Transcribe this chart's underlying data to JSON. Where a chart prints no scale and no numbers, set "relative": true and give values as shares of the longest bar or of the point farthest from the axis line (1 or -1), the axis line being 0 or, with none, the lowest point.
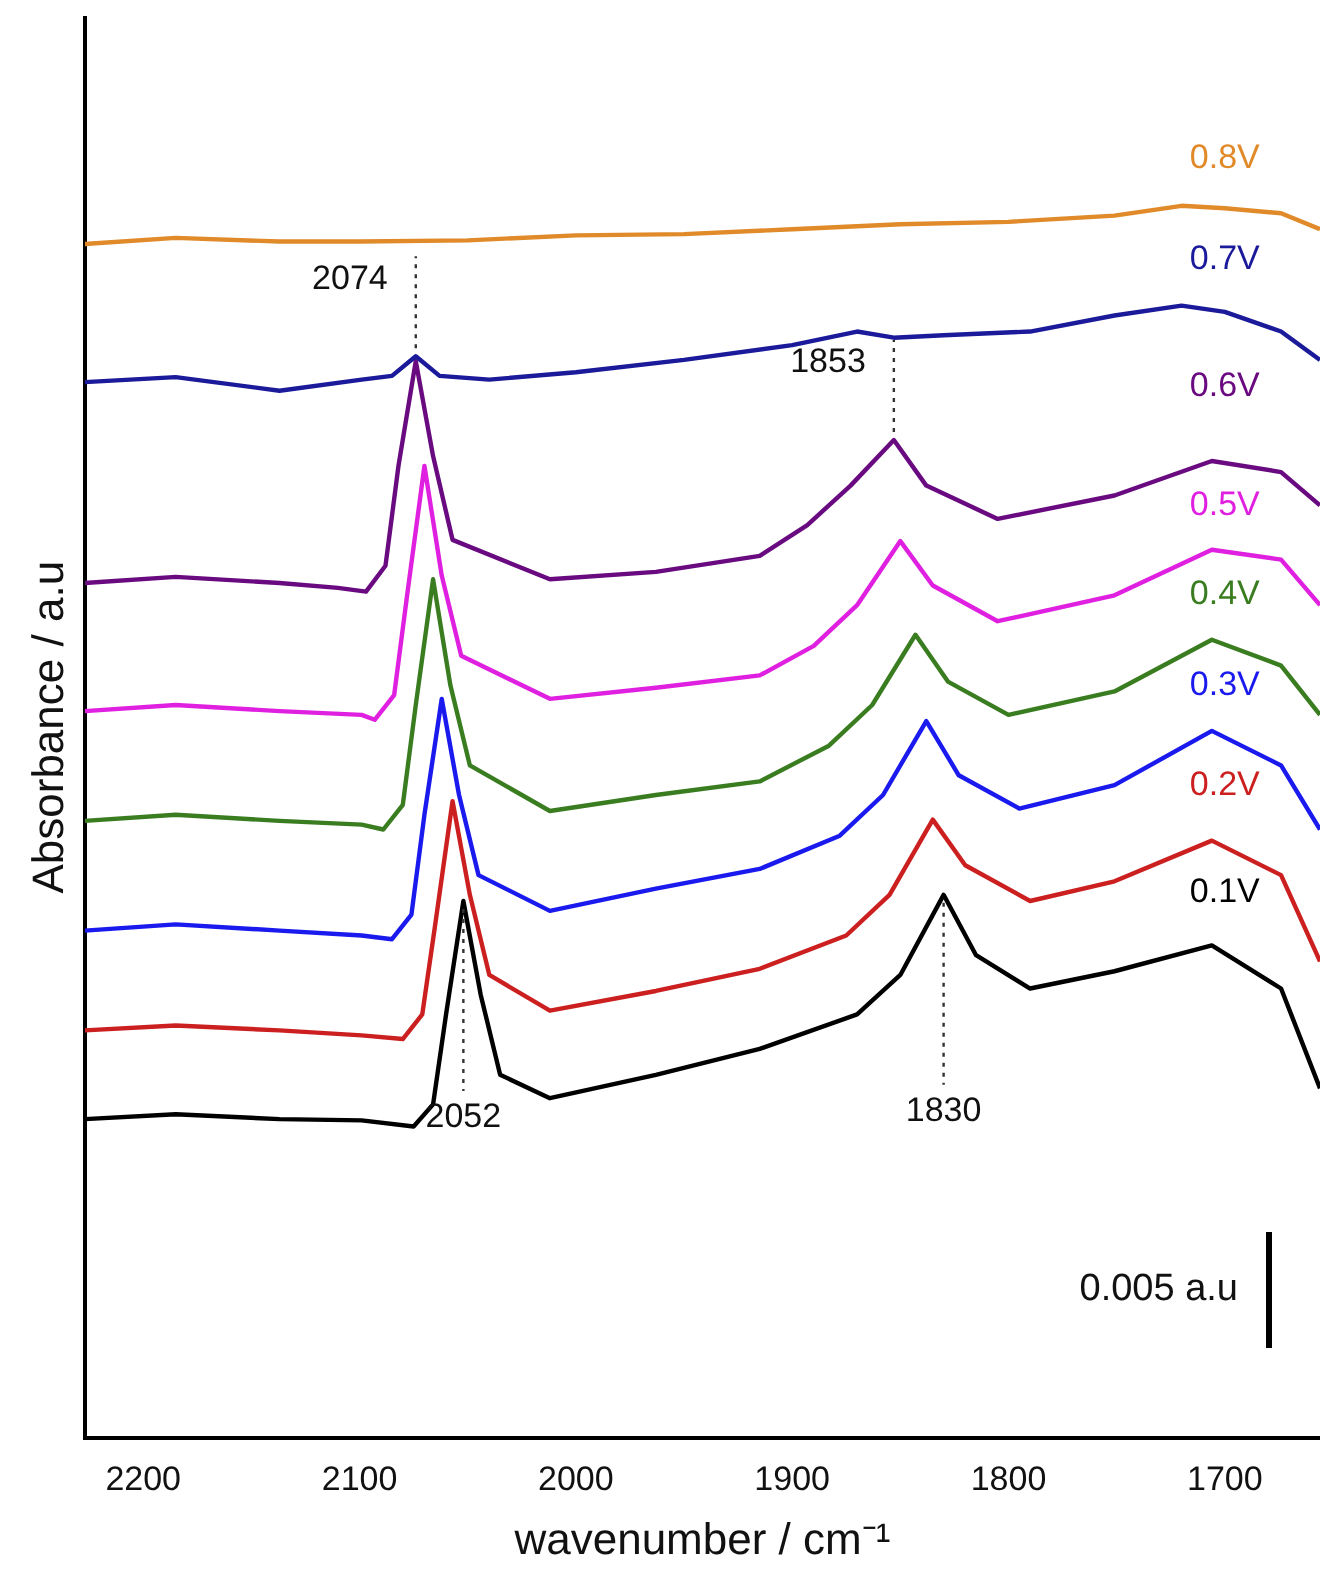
{
  "chart_data": {
    "type": "line",
    "relative": true,
    "xlabel": "wavenumber / cm⁻¹",
    "ylabel": "Absorbance / a.u",
    "xlim": [
      2227,
      1656
    ],
    "xticks": [
      2200,
      2100,
      2000,
      1900,
      1800,
      1700
    ],
    "grid": false,
    "legend": false,
    "marker": "none",
    "line_style": "solid",
    "series": [
      {
        "name": "0.8V",
        "color": "#e08a2a",
        "x": [
          2227,
          2185,
          2137,
          2100,
          2050,
          2000,
          1950,
          1900,
          1850,
          1800,
          1751,
          1720,
          1700,
          1674,
          1656
        ],
        "values": [
          0.969,
          0.974,
          0.971,
          0.971,
          0.972,
          0.976,
          0.977,
          0.981,
          0.985,
          0.987,
          0.992,
          1,
          0.998,
          0.994,
          0.981
        ]
      },
      {
        "name": "0.7V",
        "color": "#1a1a9a",
        "x": [
          2227,
          2185,
          2137,
          2099,
          2085,
          2074,
          2063,
          2040,
          2000,
          1950,
          1900,
          1870,
          1853,
          1830,
          1790,
          1751,
          1720,
          1700,
          1674,
          1656
        ],
        "values": [
          0.857,
          0.861,
          0.85,
          0.859,
          0.862,
          0.878,
          0.862,
          0.859,
          0.865,
          0.875,
          0.887,
          0.898,
          0.893,
          0.895,
          0.898,
          0.911,
          0.919,
          0.914,
          0.898,
          0.875
        ]
      },
      {
        "name": "0.6V",
        "color": "#6a0a80",
        "x": [
          2227,
          2185,
          2137,
          2110,
          2097,
          2088,
          2082,
          2074,
          2066,
          2057,
          2012,
          1963,
          1915,
          1893,
          1873,
          1853,
          1838,
          1805,
          1751,
          1706,
          1674,
          1656
        ],
        "values": [
          0.694,
          0.699,
          0.694,
          0.69,
          0.687,
          0.708,
          0.789,
          0.874,
          0.797,
          0.729,
          0.697,
          0.703,
          0.716,
          0.741,
          0.773,
          0.81,
          0.773,
          0.746,
          0.765,
          0.793,
          0.784,
          0.757
        ]
      },
      {
        "name": "0.5V",
        "color": "#e020e0",
        "x": [
          2227,
          2185,
          2137,
          2099,
          2093,
          2084,
          2078,
          2070,
          2062,
          2053,
          2012,
          1963,
          1915,
          1890,
          1870,
          1850,
          1835,
          1805,
          1751,
          1706,
          1674,
          1656
        ],
        "values": [
          0.59,
          0.595,
          0.59,
          0.587,
          0.583,
          0.603,
          0.684,
          0.789,
          0.7,
          0.635,
          0.6,
          0.609,
          0.619,
          0.643,
          0.676,
          0.728,
          0.692,
          0.663,
          0.684,
          0.721,
          0.713,
          0.676
        ]
      },
      {
        "name": "0.4V",
        "color": "#3a7d20",
        "x": [
          2227,
          2185,
          2137,
          2099,
          2089,
          2080,
          2074,
          2066,
          2058,
          2049,
          2012,
          1963,
          1915,
          1883,
          1863,
          1843,
          1828,
          1800,
          1751,
          1706,
          1674,
          1656
        ],
        "values": [
          0.501,
          0.506,
          0.501,
          0.498,
          0.494,
          0.514,
          0.595,
          0.697,
          0.611,
          0.546,
          0.509,
          0.522,
          0.533,
          0.562,
          0.595,
          0.652,
          0.614,
          0.587,
          0.606,
          0.648,
          0.627,
          0.587
        ]
      },
      {
        "name": "0.3V",
        "color": "#1a1aee",
        "x": [
          2227,
          2185,
          2137,
          2099,
          2085,
          2076,
          2070,
          2062,
          2054,
          2045,
          2012,
          1963,
          1915,
          1878,
          1858,
          1838,
          1823,
          1795,
          1751,
          1706,
          1674,
          1656
        ],
        "values": [
          0.412,
          0.417,
          0.412,
          0.408,
          0.405,
          0.425,
          0.506,
          0.6,
          0.522,
          0.457,
          0.428,
          0.446,
          0.462,
          0.489,
          0.522,
          0.582,
          0.538,
          0.511,
          0.53,
          0.574,
          0.546,
          0.494
        ]
      },
      {
        "name": "0.2V",
        "color": "#cc2020",
        "x": [
          2227,
          2185,
          2137,
          2099,
          2080,
          2071,
          2065,
          2057,
          2049,
          2040,
          2012,
          1963,
          1915,
          1875,
          1855,
          1835,
          1820,
          1790,
          1751,
          1706,
          1674,
          1656
        ],
        "values": [
          0.331,
          0.335,
          0.331,
          0.327,
          0.324,
          0.344,
          0.417,
          0.517,
          0.441,
          0.376,
          0.347,
          0.363,
          0.381,
          0.408,
          0.441,
          0.502,
          0.465,
          0.436,
          0.452,
          0.485,
          0.457,
          0.387
        ]
      },
      {
        "name": "0.1V",
        "color": "#000000",
        "x": [
          2227,
          2185,
          2137,
          2099,
          2075,
          2066,
          2060,
          2052,
          2044,
          2035,
          2012,
          1963,
          1915,
          1870,
          1850,
          1830,
          1815,
          1790,
          1751,
          1706,
          1674,
          1656
        ],
        "values": [
          0.259,
          0.263,
          0.259,
          0.258,
          0.253,
          0.271,
          0.344,
          0.436,
          0.36,
          0.295,
          0.276,
          0.295,
          0.316,
          0.344,
          0.376,
          0.441,
          0.392,
          0.365,
          0.379,
          0.4,
          0.365,
          0.284
        ]
      }
    ],
    "annotations": [
      {
        "text": "2074",
        "x": 2074,
        "y": 0.878
      },
      {
        "text": "1853",
        "x": 1853,
        "y": 0.81
      },
      {
        "text": "2052",
        "x": 2052,
        "y": 0.436
      },
      {
        "text": "1830",
        "x": 1830,
        "y": 0.441
      },
      "0.005 a.u"
    ]
  }
}
